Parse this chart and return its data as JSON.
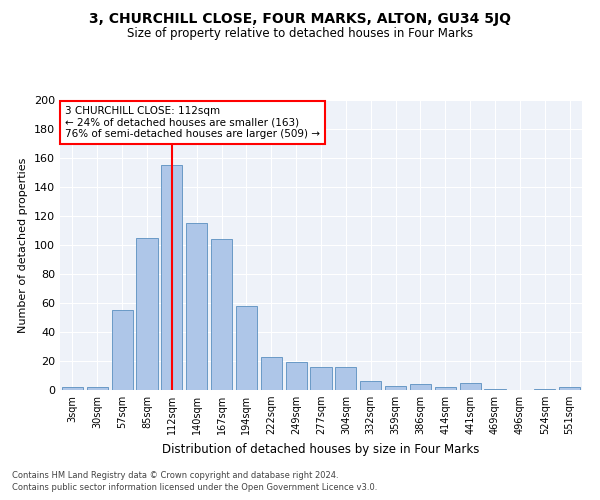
{
  "title": "3, CHURCHILL CLOSE, FOUR MARKS, ALTON, GU34 5JQ",
  "subtitle": "Size of property relative to detached houses in Four Marks",
  "xlabel": "Distribution of detached houses by size in Four Marks",
  "ylabel": "Number of detached properties",
  "bar_labels": [
    "3sqm",
    "30sqm",
    "57sqm",
    "85sqm",
    "112sqm",
    "140sqm",
    "167sqm",
    "194sqm",
    "222sqm",
    "249sqm",
    "277sqm",
    "304sqm",
    "332sqm",
    "359sqm",
    "386sqm",
    "414sqm",
    "441sqm",
    "469sqm",
    "496sqm",
    "524sqm",
    "551sqm"
  ],
  "bar_heights": [
    2,
    2,
    55,
    105,
    155,
    115,
    104,
    58,
    23,
    19,
    16,
    16,
    6,
    3,
    4,
    2,
    5,
    1,
    0,
    1,
    2
  ],
  "bar_color": "#aec6e8",
  "bar_edge_color": "#5a8fc0",
  "vline_x_index": 4,
  "vline_color": "red",
  "annotation_line1": "3 CHURCHILL CLOSE: 112sqm",
  "annotation_line2": "← 24% of detached houses are smaller (163)",
  "annotation_line3": "76% of semi-detached houses are larger (509) →",
  "annotation_box_color": "white",
  "annotation_box_edge_color": "red",
  "ylim": [
    0,
    200
  ],
  "yticks": [
    0,
    20,
    40,
    60,
    80,
    100,
    120,
    140,
    160,
    180,
    200
  ],
  "footer1": "Contains HM Land Registry data © Crown copyright and database right 2024.",
  "footer2": "Contains public sector information licensed under the Open Government Licence v3.0.",
  "plot_bg_color": "#eef2f9"
}
